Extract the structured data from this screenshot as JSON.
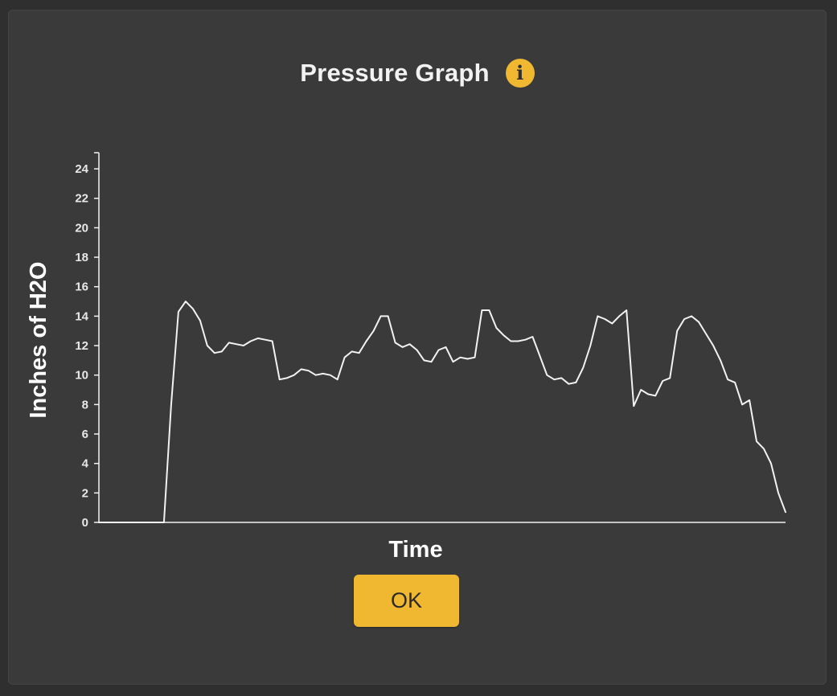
{
  "dialog": {
    "title": "Pressure Graph",
    "info_icon": "info-icon",
    "ok_label": "OK"
  },
  "colors": {
    "background": "#3a3a3a",
    "accent": "#f0b731",
    "line": "#f2f2f2"
  },
  "chart_data": {
    "type": "line",
    "title": "Pressure Graph",
    "xlabel": "Time",
    "ylabel": "Inches of H2O",
    "ylim": [
      0,
      25
    ],
    "yticks": [
      0,
      2,
      4,
      6,
      8,
      10,
      12,
      14,
      16,
      18,
      20,
      22,
      24
    ],
    "xticks_labeled": false,
    "grid": false,
    "legend": "none",
    "series": [
      {
        "values": [
          0,
          0,
          0,
          0,
          0,
          0,
          0,
          0,
          0,
          0,
          8,
          14.3,
          15,
          14.5,
          13.7,
          12,
          11.5,
          11.6,
          12.2,
          12.1,
          12.0,
          12.3,
          12.5,
          12.4,
          12.3,
          9.7,
          9.8,
          10.0,
          10.4,
          10.3,
          10.0,
          10.1,
          10.0,
          9.7,
          11.2,
          11.6,
          11.5,
          12.3,
          13.0,
          14.0,
          14.0,
          12.2,
          11.9,
          12.1,
          11.7,
          11.0,
          10.9,
          11.7,
          11.9,
          10.9,
          11.2,
          11.1,
          11.2,
          14.4,
          14.4,
          13.2,
          12.7,
          12.3,
          12.3,
          12.4,
          12.6,
          11.3,
          10.0,
          9.7,
          9.8,
          9.4,
          9.5,
          10.5,
          12.0,
          14.0,
          13.8,
          13.5,
          14.0,
          14.4,
          7.9,
          9.0,
          8.7,
          8.6,
          9.6,
          9.8,
          13.0,
          13.8,
          14.0,
          13.6,
          12.8,
          12.0,
          11.0,
          9.7,
          9.5,
          8.0,
          8.3,
          5.5,
          5.0,
          4.0,
          2.0,
          0.7
        ]
      }
    ]
  }
}
